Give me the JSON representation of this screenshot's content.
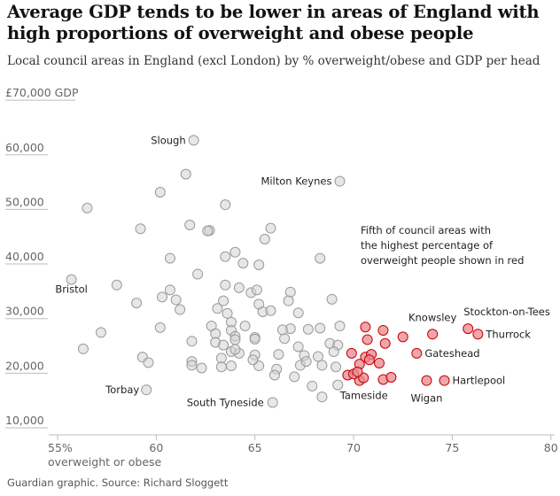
{
  "title": "Average GDP tends to be lower in areas of England with high proportions of overweight and obese people",
  "subtitle": "Local council areas in England (excl London) by % overweight/obese and GDP per head",
  "source": "Guardian graphic. Source: Richard Sloggett",
  "colors": {
    "grey_fill": "#d4d4d4",
    "grey_stroke": "#9a9a9a",
    "red_fill": "#e8888f",
    "red_stroke": "#c70000",
    "axis": "#bdbdbd"
  },
  "chart_data": {
    "type": "scatter",
    "title": "Average GDP tends to be lower in areas of England with high proportions of overweight and obese people",
    "subtitle": "Local council areas in England (excl London) by % overweight/obese and GDP per head",
    "xlabel": "overweight or obese",
    "ylabel": "",
    "xlim": [
      55,
      80
    ],
    "ylim": [
      10000,
      72000
    ],
    "x_ticks": [
      55,
      60,
      65,
      70,
      75,
      80
    ],
    "x_tick_labels": [
      "55%",
      "60",
      "65",
      "70",
      "75",
      "80"
    ],
    "y_ticks": [
      10000,
      20000,
      30000,
      40000,
      50000,
      60000,
      70000
    ],
    "y_tick_labels": [
      "10,000",
      "20,000",
      "30,000",
      "40,000",
      "50,000",
      "60,000",
      "£70,000 GDP"
    ],
    "grid": false,
    "annotation": "Fifth of council areas with the highest percentage of overweight people shown in red",
    "labels": [
      {
        "text": "Slough",
        "x": 61.9,
        "y": 62000,
        "anchor": "end"
      },
      {
        "text": "Milton Keynes",
        "x": 69.3,
        "y": 54500,
        "anchor": "end"
      },
      {
        "text": "Bristol",
        "x": 55.7,
        "y": 36500,
        "anchor": "middle"
      },
      {
        "text": "Torbay",
        "x": 59.5,
        "y": 16300,
        "anchor": "end"
      },
      {
        "text": "South Tyneside",
        "x": 65.9,
        "y": 14000,
        "anchor": "end"
      },
      {
        "text": "Tameside",
        "x": 70.3,
        "y": 18000,
        "anchor": "middle"
      },
      {
        "text": "Knowsley",
        "x": 74.0,
        "y": 26500,
        "anchor": "middle"
      },
      {
        "text": "Stockton-on-Tees",
        "x": 75.8,
        "y": 27500,
        "anchor": "start"
      },
      {
        "text": "Thurrock",
        "x": 76.3,
        "y": 26500,
        "anchor": "start"
      },
      {
        "text": "Gateshead",
        "x": 73.2,
        "y": 23000,
        "anchor": "start"
      },
      {
        "text": "Hartlepool",
        "x": 74.6,
        "y": 18000,
        "anchor": "start"
      },
      {
        "text": "Wigan",
        "x": 73.7,
        "y": 18000,
        "anchor": "middle"
      }
    ],
    "series": [
      {
        "group": "other",
        "points": [
          [
            61.9,
            62000
          ],
          [
            69.3,
            54500
          ],
          [
            61.5,
            55800
          ],
          [
            60.2,
            52500
          ],
          [
            63.5,
            50200
          ],
          [
            56.5,
            49600
          ],
          [
            59.2,
            45800
          ],
          [
            61.7,
            46500
          ],
          [
            62.7,
            45500
          ],
          [
            65.8,
            45900
          ],
          [
            62.6,
            45400
          ],
          [
            65.5,
            43900
          ],
          [
            64.0,
            41500
          ],
          [
            63.5,
            40700
          ],
          [
            60.7,
            40400
          ],
          [
            68.3,
            40400
          ],
          [
            64.4,
            39500
          ],
          [
            65.2,
            39200
          ],
          [
            62.1,
            37500
          ],
          [
            55.7,
            36500
          ],
          [
            58.0,
            35500
          ],
          [
            60.7,
            34600
          ],
          [
            63.5,
            35500
          ],
          [
            64.2,
            35000
          ],
          [
            64.8,
            34100
          ],
          [
            66.8,
            34200
          ],
          [
            65.1,
            34600
          ],
          [
            60.3,
            33300
          ],
          [
            61.0,
            32800
          ],
          [
            63.4,
            32600
          ],
          [
            65.2,
            32000
          ],
          [
            59.0,
            32200
          ],
          [
            66.7,
            32600
          ],
          [
            68.9,
            32900
          ],
          [
            61.2,
            31000
          ],
          [
            63.1,
            31200
          ],
          [
            65.4,
            30600
          ],
          [
            65.8,
            30800
          ],
          [
            63.6,
            30300
          ],
          [
            67.2,
            30400
          ],
          [
            63.8,
            28700
          ],
          [
            62.8,
            28000
          ],
          [
            60.2,
            27700
          ],
          [
            57.2,
            26800
          ],
          [
            63.0,
            26600
          ],
          [
            63.8,
            27200
          ],
          [
            64.0,
            26100
          ],
          [
            64.5,
            28000
          ],
          [
            66.8,
            27500
          ],
          [
            67.7,
            27400
          ],
          [
            68.3,
            27600
          ],
          [
            69.3,
            28000
          ],
          [
            61.8,
            25200
          ],
          [
            63.0,
            25000
          ],
          [
            63.4,
            24500
          ],
          [
            64.0,
            25500
          ],
          [
            65.0,
            25900
          ],
          [
            66.5,
            25700
          ],
          [
            67.2,
            24200
          ],
          [
            68.8,
            24800
          ],
          [
            69.2,
            24500
          ],
          [
            56.3,
            23800
          ],
          [
            63.8,
            23300
          ],
          [
            64.2,
            23000
          ],
          [
            65.0,
            22700
          ],
          [
            66.2,
            22800
          ],
          [
            67.5,
            22600
          ],
          [
            68.2,
            22400
          ],
          [
            69.0,
            23300
          ],
          [
            59.3,
            22300
          ],
          [
            61.8,
            21500
          ],
          [
            63.3,
            22100
          ],
          [
            64.0,
            23700
          ],
          [
            59.6,
            21300
          ],
          [
            61.8,
            20800
          ],
          [
            62.3,
            20300
          ],
          [
            63.3,
            20500
          ],
          [
            63.8,
            20700
          ],
          [
            65.2,
            20700
          ],
          [
            66.1,
            20100
          ],
          [
            67.3,
            20800
          ],
          [
            68.4,
            20800
          ],
          [
            69.1,
            20500
          ],
          [
            66.0,
            19000
          ],
          [
            67.0,
            18700
          ],
          [
            67.9,
            17000
          ],
          [
            69.2,
            17200
          ],
          [
            59.5,
            16300
          ],
          [
            68.4,
            15000
          ],
          [
            65.9,
            14000
          ],
          [
            65.0,
            25600
          ],
          [
            66.4,
            27300
          ],
          [
            64.9,
            21800
          ],
          [
            67.6,
            21500
          ]
        ]
      },
      {
        "group": "highest fifth",
        "points": [
          [
            74.0,
            26500
          ],
          [
            75.8,
            27500
          ],
          [
            76.3,
            26500
          ],
          [
            73.2,
            23000
          ],
          [
            74.6,
            18000
          ],
          [
            73.7,
            18000
          ],
          [
            70.3,
            18000
          ],
          [
            70.6,
            27800
          ],
          [
            71.5,
            27200
          ],
          [
            72.5,
            26000
          ],
          [
            70.7,
            25500
          ],
          [
            71.6,
            24800
          ],
          [
            70.6,
            22300
          ],
          [
            70.9,
            22800
          ],
          [
            71.3,
            21200
          ],
          [
            70.3,
            21000
          ],
          [
            69.7,
            19000
          ],
          [
            70.0,
            19200
          ],
          [
            70.5,
            18500
          ],
          [
            71.5,
            18200
          ],
          [
            71.9,
            18600
          ],
          [
            70.2,
            19600
          ],
          [
            70.8,
            21800
          ],
          [
            69.9,
            23000
          ]
        ]
      }
    ]
  }
}
